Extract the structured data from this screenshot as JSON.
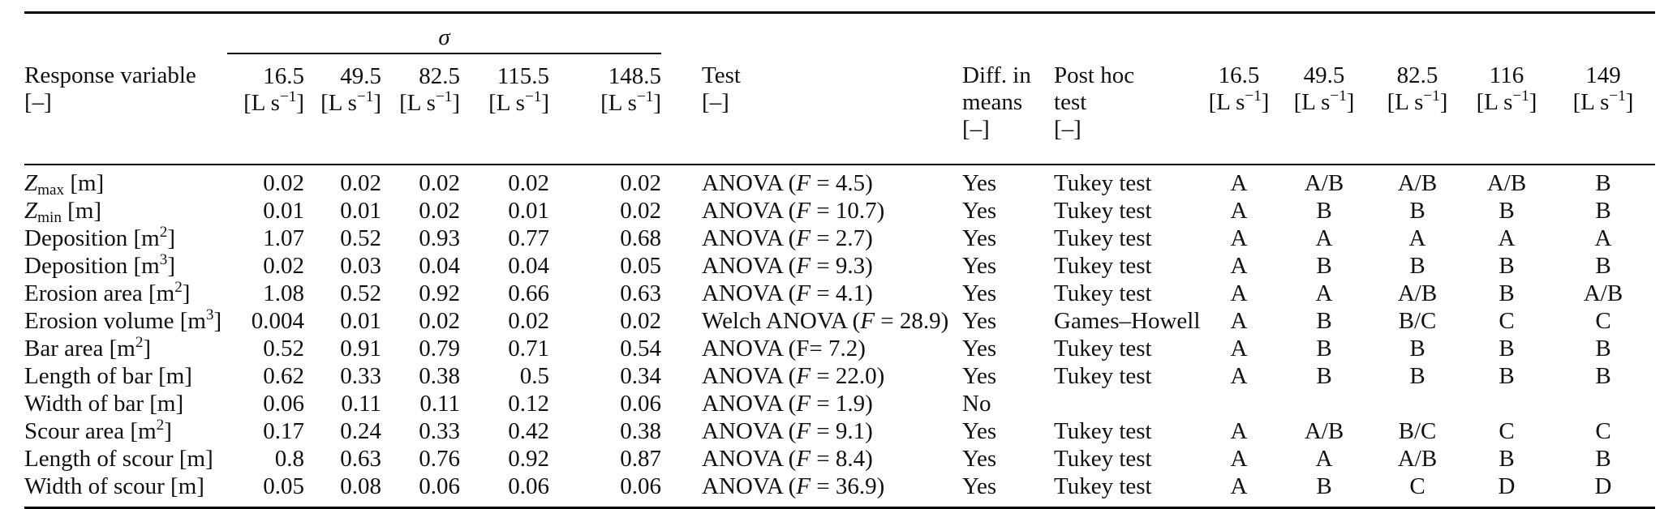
{
  "table": {
    "sigma_label": "*σ*",
    "header": {
      "response": "Response variable\n[–]",
      "flow_cols": [
        "16.5\n[L s^−1^]",
        "49.5\n[L s^−1^]",
        "82.5\n[L s^−1^]",
        "115.5\n[L s^−1^]",
        "148.5\n[L s^−1^]"
      ],
      "test": "Test\n[–]",
      "diff": "Diff. in\nmeans\n[–]",
      "posthoc": "Post hoc\ntest\n[–]",
      "letter_cols": [
        "16.5\n[L s^−1^]",
        "49.5\n[L s^−1^]",
        "82.5\n[L s^−1^]",
        "116\n[L s^−1^]",
        "149\n[L s^−1^]"
      ]
    },
    "rows": [
      {
        "label": "*Z*~max~ [m]",
        "values": [
          "0.02",
          "0.02",
          "0.02",
          "0.02",
          "0.02"
        ],
        "test": "ANOVA (*F* = 4.5)",
        "diff": "Yes",
        "posthoc": "Tukey test",
        "letters": [
          "A",
          "A/B",
          "A/B",
          "A/B",
          "B"
        ]
      },
      {
        "label": "*Z*~min~ [m]",
        "values": [
          "0.01",
          "0.01",
          "0.02",
          "0.01",
          "0.02"
        ],
        "test": "ANOVA (*F* = 10.7)",
        "diff": "Yes",
        "posthoc": "Tukey test",
        "letters": [
          "A",
          "B",
          "B",
          "B",
          "B"
        ]
      },
      {
        "label": "Deposition [m^2^]",
        "values": [
          "1.07",
          "0.52",
          "0.93",
          "0.77",
          "0.68"
        ],
        "test": "ANOVA (*F* = 2.7)",
        "diff": "Yes",
        "posthoc": "Tukey test",
        "letters": [
          "A",
          "A",
          "A",
          "A",
          "A"
        ]
      },
      {
        "label": "Deposition [m^3^]",
        "values": [
          "0.02",
          "0.03",
          "0.04",
          "0.04",
          "0.05"
        ],
        "test": "ANOVA (*F* = 9.3)",
        "diff": "Yes",
        "posthoc": "Tukey test",
        "letters": [
          "A",
          "B",
          "B",
          "B",
          "B"
        ]
      },
      {
        "label": "Erosion area [m^2^]",
        "values": [
          "1.08",
          "0.52",
          "0.92",
          "0.66",
          "0.63"
        ],
        "test": "ANOVA (*F* = 4.1)",
        "diff": "Yes",
        "posthoc": "Tukey test",
        "letters": [
          "A",
          "A",
          "A/B",
          "B",
          "A/B"
        ]
      },
      {
        "label": "Erosion volume [m^3^]",
        "values": [
          "0.004",
          "0.01",
          "0.02",
          "0.02",
          "0.02"
        ],
        "test": "Welch ANOVA (*F* = 28.9)",
        "diff": "Yes",
        "posthoc": "Games–Howell",
        "letters": [
          "A",
          "B",
          "B/C",
          "C",
          "C"
        ]
      },
      {
        "label": "Bar area [m^2^]",
        "values": [
          "0.52",
          "0.91",
          "0.79",
          "0.71",
          "0.54"
        ],
        "test": "ANOVA (F= 7.2)",
        "diff": "Yes",
        "posthoc": "Tukey test",
        "letters": [
          "A",
          "B",
          "B",
          "B",
          "B"
        ]
      },
      {
        "label": "Length of bar [m]",
        "values": [
          "0.62",
          "0.33",
          "0.38",
          "0.5",
          "0.34"
        ],
        "test": "ANOVA (*F* = 22.0)",
        "diff": "Yes",
        "posthoc": "Tukey test",
        "letters": [
          "A",
          "B",
          "B",
          "B",
          "B"
        ]
      },
      {
        "label": "Width of bar [m]",
        "values": [
          "0.06",
          "0.11",
          "0.11",
          "0.12",
          "0.06"
        ],
        "test": "ANOVA (*F* = 1.9)",
        "diff": "No",
        "posthoc": "",
        "letters": [
          "",
          "",
          "",
          "",
          ""
        ]
      },
      {
        "label": "Scour area [m^2^]",
        "values": [
          "0.17",
          "0.24",
          "0.33",
          "0.42",
          "0.38"
        ],
        "test": "ANOVA (*F* = 9.1)",
        "diff": "Yes",
        "posthoc": "Tukey test",
        "letters": [
          "A",
          "A/B",
          "B/C",
          "C",
          "C"
        ]
      },
      {
        "label": "Length of scour [m]",
        "values": [
          "0.8",
          "0.63",
          "0.76",
          "0.92",
          "0.87"
        ],
        "test": "ANOVA (*F* = 8.4)",
        "diff": "Yes",
        "posthoc": "Tukey test",
        "letters": [
          "A",
          "A",
          "A/B",
          "B",
          "B"
        ]
      },
      {
        "label": "Width of scour [m]",
        "values": [
          "0.05",
          "0.08",
          "0.06",
          "0.06",
          "0.06"
        ],
        "test": "ANOVA (*F* = 36.9)",
        "diff": "Yes",
        "posthoc": "Tukey test",
        "letters": [
          "A",
          "B",
          "C",
          "D",
          "D"
        ]
      }
    ]
  }
}
